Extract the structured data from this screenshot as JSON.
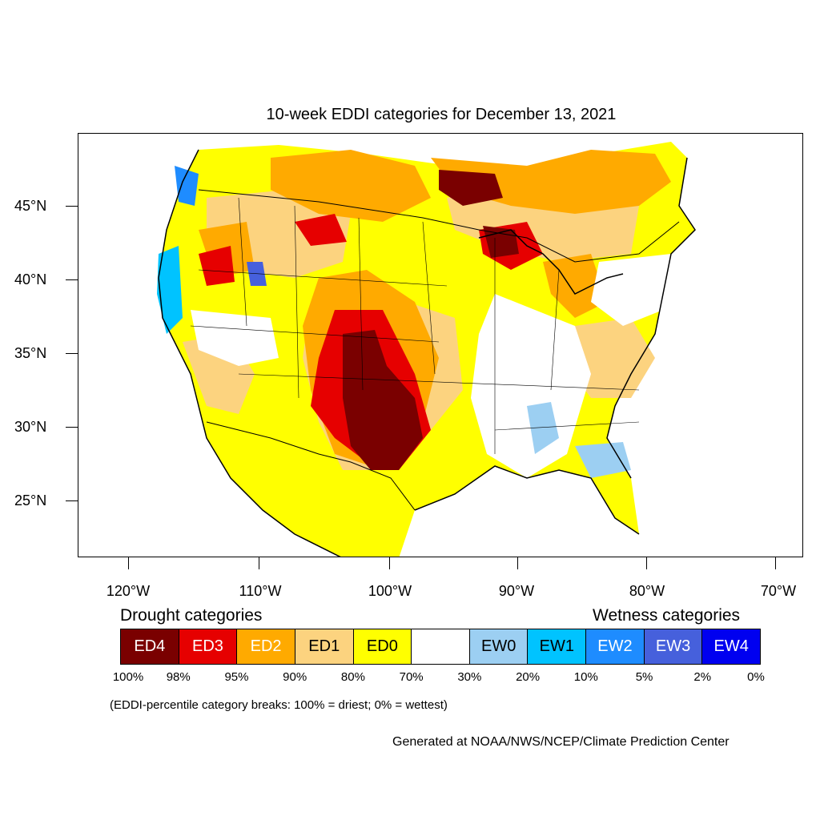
{
  "title": "10-week EDDI categories for December 13, 2021",
  "latitude_labels": [
    "45°N",
    "40°N",
    "35°N",
    "30°N",
    "25°N"
  ],
  "longitude_labels": [
    "120°W",
    "110°W",
    "100°W",
    "90°W",
    "80°W",
    "70°W"
  ],
  "legend": {
    "drought_heading": "Drought categories",
    "wetness_heading": "Wetness categories",
    "categories": [
      {
        "label": "ED4",
        "color": "#7a0000",
        "text_color": "#ffffff"
      },
      {
        "label": "ED3",
        "color": "#e60000",
        "text_color": "#ffffff"
      },
      {
        "label": "ED2",
        "color": "#ffaa00",
        "text_color": "#ffffff"
      },
      {
        "label": "ED1",
        "color": "#fcd37f",
        "text_color": "#000000"
      },
      {
        "label": "ED0",
        "color": "#ffff00",
        "text_color": "#000000"
      },
      {
        "label": "",
        "color": "#ffffff",
        "text_color": "#000000"
      },
      {
        "label": "EW0",
        "color": "#9ccff2",
        "text_color": "#000000"
      },
      {
        "label": "EW1",
        "color": "#00c3ff",
        "text_color": "#000000"
      },
      {
        "label": "EW2",
        "color": "#1e8cff",
        "text_color": "#ffffff"
      },
      {
        "label": "EW3",
        "color": "#4660dc",
        "text_color": "#ffffff"
      },
      {
        "label": "EW4",
        "color": "#0000f0",
        "text_color": "#ffffff"
      }
    ],
    "breaks": [
      "100%",
      "98%",
      "95%",
      "90%",
      "80%",
      "70%",
      "30%",
      "20%",
      "10%",
      "5%",
      "2%",
      "0%"
    ]
  },
  "note": "(EDDI-percentile category breaks: 100% = driest; 0% = wettest)",
  "credit": "Generated at NOAA/NWS/NCEP/Climate Prediction Center"
}
